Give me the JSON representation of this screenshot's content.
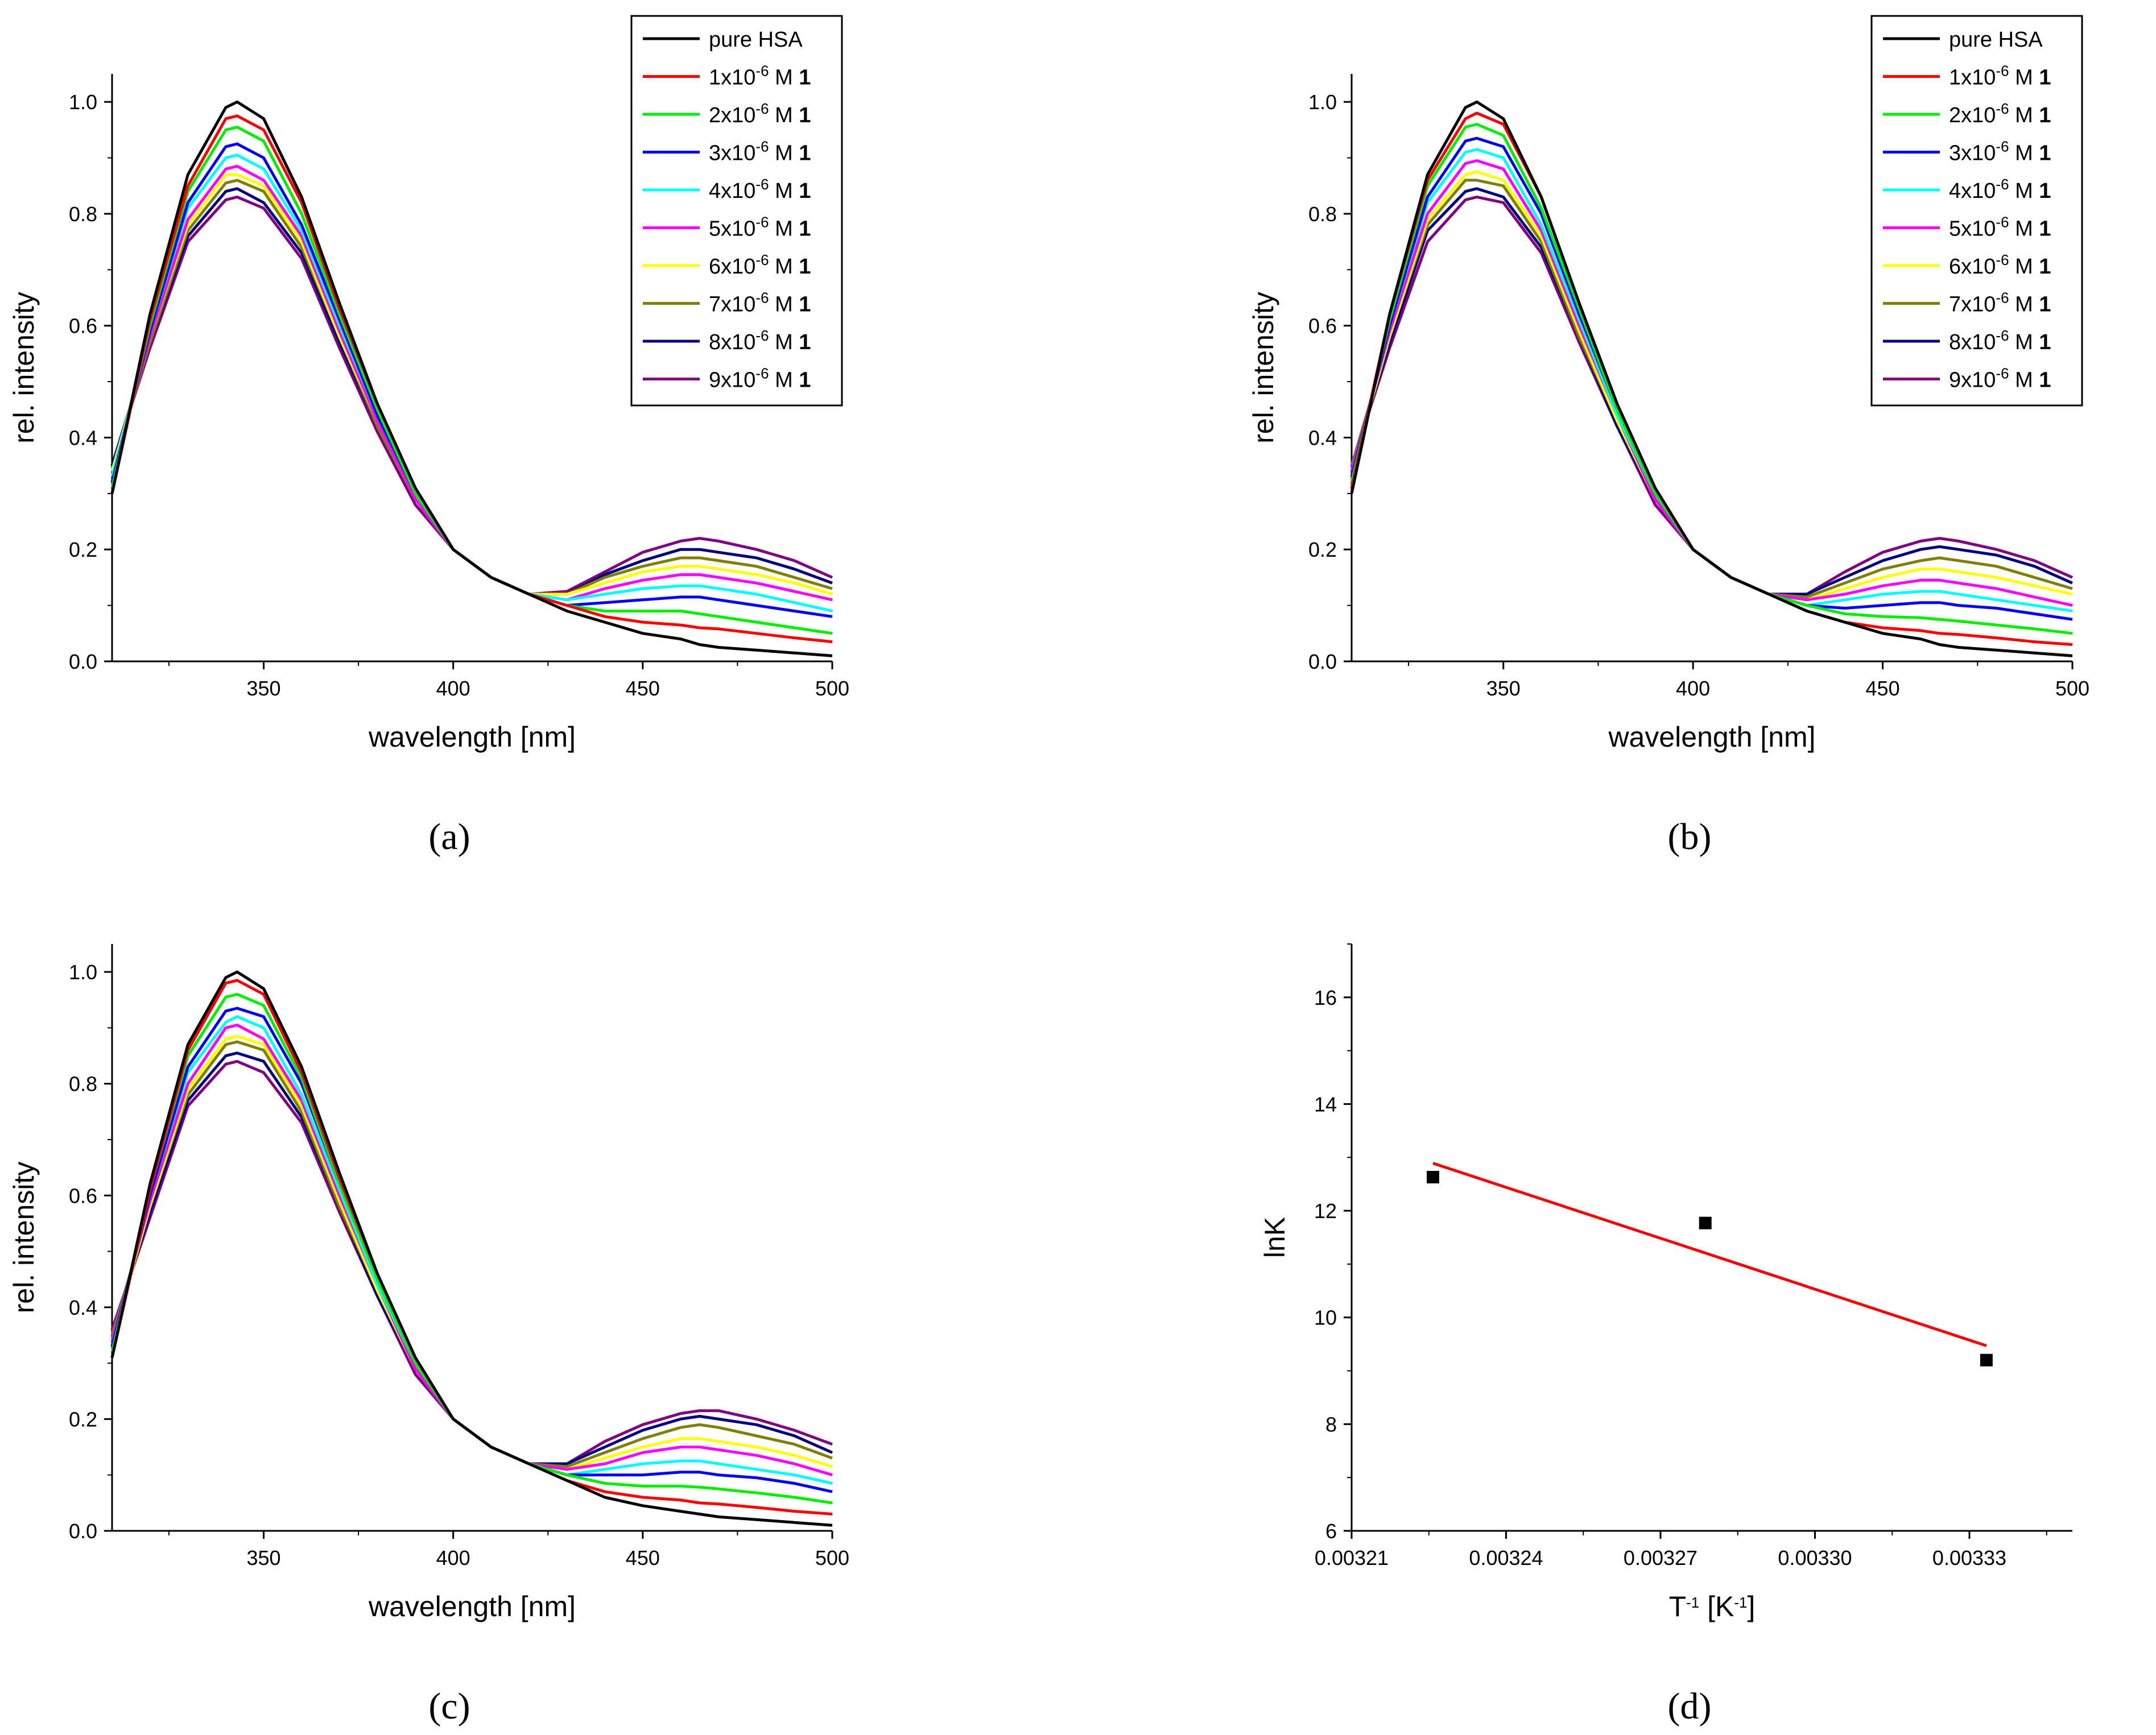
{
  "figure": {
    "panel_labels": [
      "(a)",
      "(b)",
      "(c)",
      "(d)"
    ]
  },
  "chart_data": [
    {
      "type": "line",
      "panel": "(a)",
      "xlabel": "wavelength [nm]",
      "ylabel": "rel. intensity",
      "xlim": [
        310,
        500
      ],
      "ylim": [
        0.0,
        1.05
      ],
      "xticks": [
        350,
        400,
        450,
        500
      ],
      "yticks": [
        0.0,
        0.2,
        0.4,
        0.6,
        0.8,
        1.0
      ],
      "grid": false,
      "legend_position": "top-right",
      "x": [
        310,
        320,
        330,
        340,
        343,
        350,
        360,
        370,
        380,
        390,
        400,
        410,
        420,
        430,
        440,
        450,
        460,
        465,
        470,
        480,
        490,
        500
      ],
      "series": [
        {
          "name": "pure HSA",
          "conc": "",
          "color": "#000000",
          "values": [
            0.3,
            0.62,
            0.87,
            0.99,
            1.0,
            0.97,
            0.83,
            0.64,
            0.46,
            0.31,
            0.2,
            0.15,
            0.12,
            0.09,
            0.07,
            0.05,
            0.04,
            0.03,
            0.025,
            0.02,
            0.015,
            0.01
          ]
        },
        {
          "name": "1x10-6 M 1",
          "conc": "1",
          "color": "#ff0000",
          "values": [
            0.3,
            0.61,
            0.85,
            0.97,
            0.975,
            0.95,
            0.82,
            0.63,
            0.46,
            0.31,
            0.2,
            0.15,
            0.12,
            0.1,
            0.08,
            0.07,
            0.065,
            0.06,
            0.058,
            0.05,
            0.042,
            0.035
          ]
        },
        {
          "name": "2x10-6 M 1",
          "conc": "2",
          "color": "#00ee00",
          "values": [
            0.31,
            0.6,
            0.84,
            0.95,
            0.955,
            0.93,
            0.8,
            0.62,
            0.45,
            0.3,
            0.2,
            0.15,
            0.12,
            0.1,
            0.09,
            0.09,
            0.09,
            0.085,
            0.08,
            0.07,
            0.06,
            0.05
          ]
        },
        {
          "name": "3x10-6 M 1",
          "conc": "3",
          "color": "#0000ff",
          "values": [
            0.32,
            0.59,
            0.82,
            0.92,
            0.925,
            0.9,
            0.78,
            0.61,
            0.44,
            0.3,
            0.2,
            0.15,
            0.12,
            0.1,
            0.105,
            0.11,
            0.115,
            0.115,
            0.11,
            0.1,
            0.09,
            0.08
          ]
        },
        {
          "name": "4x10-6 M 1",
          "conc": "4",
          "color": "#00ffff",
          "values": [
            0.33,
            0.59,
            0.81,
            0.9,
            0.905,
            0.88,
            0.77,
            0.6,
            0.44,
            0.3,
            0.2,
            0.15,
            0.12,
            0.11,
            0.12,
            0.13,
            0.135,
            0.135,
            0.13,
            0.12,
            0.105,
            0.09
          ]
        },
        {
          "name": "5x10-6 M 1",
          "conc": "5",
          "color": "#ff00ff",
          "values": [
            0.33,
            0.58,
            0.79,
            0.88,
            0.885,
            0.86,
            0.76,
            0.59,
            0.43,
            0.29,
            0.2,
            0.15,
            0.12,
            0.11,
            0.13,
            0.145,
            0.155,
            0.155,
            0.15,
            0.14,
            0.125,
            0.11
          ]
        },
        {
          "name": "6x10-6 M 1",
          "conc": "6",
          "color": "#ffff00",
          "values": [
            0.34,
            0.58,
            0.78,
            0.87,
            0.87,
            0.85,
            0.75,
            0.58,
            0.43,
            0.29,
            0.2,
            0.15,
            0.12,
            0.12,
            0.14,
            0.16,
            0.17,
            0.17,
            0.165,
            0.155,
            0.14,
            0.12
          ]
        },
        {
          "name": "7x10-6 M 1",
          "conc": "7",
          "color": "#808000",
          "values": [
            0.34,
            0.57,
            0.77,
            0.855,
            0.86,
            0.84,
            0.74,
            0.58,
            0.42,
            0.29,
            0.2,
            0.15,
            0.12,
            0.12,
            0.15,
            0.17,
            0.185,
            0.185,
            0.18,
            0.17,
            0.15,
            0.13
          ]
        },
        {
          "name": "8x10-6 M 1",
          "conc": "8",
          "color": "#000080",
          "values": [
            0.35,
            0.57,
            0.76,
            0.84,
            0.845,
            0.82,
            0.73,
            0.57,
            0.42,
            0.29,
            0.2,
            0.15,
            0.12,
            0.12,
            0.155,
            0.18,
            0.2,
            0.2,
            0.195,
            0.185,
            0.165,
            0.14
          ]
        },
        {
          "name": "9x10-6 M 1",
          "conc": "9",
          "color": "#800080",
          "values": [
            0.35,
            0.56,
            0.75,
            0.825,
            0.83,
            0.81,
            0.72,
            0.56,
            0.41,
            0.28,
            0.2,
            0.15,
            0.12,
            0.125,
            0.16,
            0.195,
            0.215,
            0.22,
            0.215,
            0.2,
            0.18,
            0.15
          ]
        }
      ]
    },
    {
      "type": "line",
      "panel": "(b)",
      "xlabel": "wavelength [nm]",
      "ylabel": "rel. intensity",
      "xlim": [
        310,
        500
      ],
      "ylim": [
        0.0,
        1.05
      ],
      "xticks": [
        350,
        400,
        450,
        500
      ],
      "yticks": [
        0.0,
        0.2,
        0.4,
        0.6,
        0.8,
        1.0
      ],
      "grid": false,
      "legend_position": "top-right",
      "x": [
        310,
        320,
        330,
        340,
        343,
        350,
        360,
        370,
        380,
        390,
        400,
        410,
        420,
        430,
        440,
        450,
        460,
        465,
        470,
        480,
        490,
        500
      ],
      "series": [
        {
          "name": "pure HSA",
          "conc": "",
          "color": "#000000",
          "values": [
            0.3,
            0.62,
            0.87,
            0.99,
            1.0,
            0.97,
            0.83,
            0.64,
            0.46,
            0.31,
            0.2,
            0.15,
            0.12,
            0.09,
            0.07,
            0.05,
            0.04,
            0.03,
            0.025,
            0.02,
            0.015,
            0.01
          ]
        },
        {
          "name": "1x10-6 M 1",
          "conc": "1",
          "color": "#ff0000",
          "values": [
            0.31,
            0.62,
            0.86,
            0.97,
            0.98,
            0.96,
            0.83,
            0.64,
            0.46,
            0.31,
            0.2,
            0.15,
            0.12,
            0.09,
            0.07,
            0.06,
            0.055,
            0.05,
            0.048,
            0.042,
            0.035,
            0.03
          ]
        },
        {
          "name": "2x10-6 M 1",
          "conc": "2",
          "color": "#00ee00",
          "values": [
            0.32,
            0.61,
            0.85,
            0.955,
            0.96,
            0.94,
            0.81,
            0.63,
            0.45,
            0.3,
            0.2,
            0.15,
            0.12,
            0.1,
            0.085,
            0.08,
            0.078,
            0.075,
            0.072,
            0.065,
            0.058,
            0.05
          ]
        },
        {
          "name": "3x10-6 M 1",
          "conc": "3",
          "color": "#0000ff",
          "values": [
            0.33,
            0.6,
            0.83,
            0.93,
            0.935,
            0.92,
            0.8,
            0.62,
            0.45,
            0.3,
            0.2,
            0.15,
            0.12,
            0.1,
            0.095,
            0.1,
            0.105,
            0.105,
            0.1,
            0.095,
            0.085,
            0.075
          ]
        },
        {
          "name": "4x10-6 M 1",
          "conc": "4",
          "color": "#00ffff",
          "values": [
            0.33,
            0.6,
            0.82,
            0.91,
            0.915,
            0.9,
            0.78,
            0.61,
            0.44,
            0.3,
            0.2,
            0.15,
            0.12,
            0.1,
            0.11,
            0.12,
            0.125,
            0.125,
            0.12,
            0.11,
            0.1,
            0.09
          ]
        },
        {
          "name": "5x10-6 M 1",
          "conc": "5",
          "color": "#ff00ff",
          "values": [
            0.34,
            0.59,
            0.8,
            0.89,
            0.895,
            0.88,
            0.77,
            0.6,
            0.44,
            0.29,
            0.2,
            0.15,
            0.12,
            0.11,
            0.12,
            0.135,
            0.145,
            0.145,
            0.14,
            0.13,
            0.115,
            0.1
          ]
        },
        {
          "name": "6x10-6 M 1",
          "conc": "6",
          "color": "#ffff00",
          "values": [
            0.34,
            0.58,
            0.79,
            0.87,
            0.875,
            0.86,
            0.76,
            0.59,
            0.43,
            0.29,
            0.2,
            0.15,
            0.12,
            0.11,
            0.13,
            0.15,
            0.165,
            0.165,
            0.16,
            0.15,
            0.135,
            0.12
          ]
        },
        {
          "name": "7x10-6 M 1",
          "conc": "7",
          "color": "#808000",
          "values": [
            0.35,
            0.58,
            0.78,
            0.86,
            0.86,
            0.85,
            0.75,
            0.58,
            0.43,
            0.29,
            0.2,
            0.15,
            0.12,
            0.115,
            0.14,
            0.165,
            0.18,
            0.185,
            0.18,
            0.17,
            0.15,
            0.13
          ]
        },
        {
          "name": "8x10-6 M 1",
          "conc": "8",
          "color": "#000080",
          "values": [
            0.35,
            0.57,
            0.77,
            0.84,
            0.845,
            0.83,
            0.74,
            0.58,
            0.42,
            0.29,
            0.2,
            0.15,
            0.12,
            0.12,
            0.15,
            0.18,
            0.2,
            0.205,
            0.2,
            0.19,
            0.17,
            0.14
          ]
        },
        {
          "name": "9x10-6 M 1",
          "conc": "9",
          "color": "#800080",
          "values": [
            0.35,
            0.56,
            0.75,
            0.825,
            0.83,
            0.82,
            0.73,
            0.57,
            0.42,
            0.28,
            0.2,
            0.15,
            0.12,
            0.12,
            0.16,
            0.195,
            0.215,
            0.22,
            0.215,
            0.2,
            0.18,
            0.15
          ]
        }
      ]
    },
    {
      "type": "line",
      "panel": "(c)",
      "xlabel": "wavelength [nm]",
      "ylabel": "rel. intensity",
      "xlim": [
        310,
        500
      ],
      "ylim": [
        0.0,
        1.05
      ],
      "xticks": [
        350,
        400,
        450,
        500
      ],
      "yticks": [
        0.0,
        0.2,
        0.4,
        0.6,
        0.8,
        1.0
      ],
      "grid": false,
      "legend_position": "top-right",
      "x": [
        310,
        320,
        330,
        340,
        343,
        350,
        360,
        370,
        380,
        390,
        400,
        410,
        420,
        430,
        440,
        450,
        460,
        465,
        470,
        480,
        490,
        500
      ],
      "series": [
        {
          "name": "pure HSA",
          "conc": "",
          "color": "#000000",
          "values": [
            0.31,
            0.62,
            0.87,
            0.99,
            1.0,
            0.97,
            0.83,
            0.64,
            0.46,
            0.31,
            0.2,
            0.15,
            0.12,
            0.09,
            0.06,
            0.045,
            0.035,
            0.03,
            0.025,
            0.02,
            0.015,
            0.01
          ]
        },
        {
          "name": "1x10-6 M 1",
          "conc": "1",
          "color": "#ff0000",
          "values": [
            0.31,
            0.61,
            0.86,
            0.98,
            0.985,
            0.96,
            0.82,
            0.63,
            0.46,
            0.31,
            0.2,
            0.15,
            0.12,
            0.09,
            0.07,
            0.06,
            0.055,
            0.05,
            0.048,
            0.042,
            0.035,
            0.03
          ]
        },
        {
          "name": "2x10-6 M 1",
          "conc": "2",
          "color": "#00ee00",
          "values": [
            0.32,
            0.61,
            0.85,
            0.955,
            0.96,
            0.94,
            0.81,
            0.62,
            0.45,
            0.3,
            0.2,
            0.15,
            0.12,
            0.1,
            0.085,
            0.08,
            0.08,
            0.078,
            0.075,
            0.068,
            0.06,
            0.05
          ]
        },
        {
          "name": "3x10-6 M 1",
          "conc": "3",
          "color": "#0000ff",
          "values": [
            0.33,
            0.6,
            0.83,
            0.93,
            0.935,
            0.92,
            0.8,
            0.62,
            0.45,
            0.3,
            0.2,
            0.15,
            0.12,
            0.1,
            0.1,
            0.1,
            0.105,
            0.105,
            0.1,
            0.095,
            0.085,
            0.07
          ]
        },
        {
          "name": "4x10-6 M 1",
          "conc": "4",
          "color": "#00ffff",
          "values": [
            0.33,
            0.6,
            0.82,
            0.91,
            0.92,
            0.9,
            0.78,
            0.61,
            0.44,
            0.3,
            0.2,
            0.15,
            0.12,
            0.1,
            0.11,
            0.12,
            0.125,
            0.125,
            0.12,
            0.11,
            0.1,
            0.085
          ]
        },
        {
          "name": "5x10-6 M 1",
          "conc": "5",
          "color": "#ff00ff",
          "values": [
            0.34,
            0.59,
            0.8,
            0.9,
            0.905,
            0.88,
            0.77,
            0.6,
            0.44,
            0.29,
            0.2,
            0.15,
            0.12,
            0.11,
            0.12,
            0.14,
            0.15,
            0.15,
            0.145,
            0.135,
            0.12,
            0.1
          ]
        },
        {
          "name": "6x10-6 M 1",
          "conc": "6",
          "color": "#ffff00",
          "values": [
            0.34,
            0.58,
            0.79,
            0.88,
            0.885,
            0.87,
            0.76,
            0.59,
            0.43,
            0.29,
            0.2,
            0.15,
            0.12,
            0.11,
            0.13,
            0.15,
            0.165,
            0.165,
            0.16,
            0.15,
            0.135,
            0.115
          ]
        },
        {
          "name": "7x10-6 M 1",
          "conc": "7",
          "color": "#808000",
          "values": [
            0.35,
            0.58,
            0.78,
            0.87,
            0.875,
            0.86,
            0.75,
            0.58,
            0.43,
            0.29,
            0.2,
            0.15,
            0.12,
            0.115,
            0.14,
            0.165,
            0.185,
            0.19,
            0.185,
            0.17,
            0.155,
            0.13
          ]
        },
        {
          "name": "8x10-6 M 1",
          "conc": "8",
          "color": "#000080",
          "values": [
            0.35,
            0.57,
            0.77,
            0.85,
            0.855,
            0.84,
            0.74,
            0.58,
            0.42,
            0.29,
            0.2,
            0.15,
            0.12,
            0.12,
            0.15,
            0.18,
            0.2,
            0.205,
            0.2,
            0.19,
            0.17,
            0.14
          ]
        },
        {
          "name": "9x10-6 M 1",
          "conc": "9",
          "color": "#800080",
          "values": [
            0.36,
            0.56,
            0.76,
            0.835,
            0.84,
            0.82,
            0.73,
            0.57,
            0.42,
            0.28,
            0.2,
            0.15,
            0.12,
            0.12,
            0.16,
            0.19,
            0.21,
            0.215,
            0.215,
            0.2,
            0.18,
            0.155
          ]
        }
      ]
    },
    {
      "type": "scatter",
      "panel": "(d)",
      "xlabel": "T-1 [K-1]",
      "ylabel": "lnK",
      "xlim": [
        0.00321,
        0.00335
      ],
      "ylim": [
        6,
        17
      ],
      "xticks": [
        "0.00321",
        "0.00324",
        "0.00327",
        "0.00330",
        "0.00333"
      ],
      "yticks": [
        6,
        8,
        10,
        12,
        14,
        16
      ],
      "grid": false,
      "points": [
        {
          "x": 0.0032258,
          "y": 12.63
        },
        {
          "x": 0.0032787,
          "y": 11.77
        },
        {
          "x": 0.0033333,
          "y": 9.2
        }
      ],
      "fit_line": {
        "x": [
          0.0032258,
          0.0033333
        ],
        "y": [
          12.89,
          9.47
        ],
        "color": "#ff0000"
      },
      "marker_color": "#000000"
    }
  ]
}
